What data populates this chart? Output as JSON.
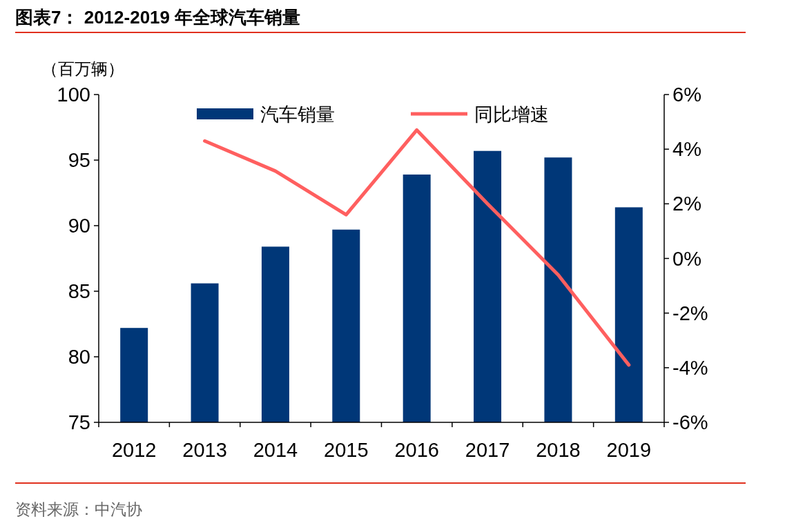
{
  "chart_data": {
    "type": "bar",
    "title": "图表7： 2012-2019 年全球汽车销量",
    "ylabel": "（百万辆）",
    "categories": [
      "2012",
      "2013",
      "2014",
      "2015",
      "2016",
      "2017",
      "2018",
      "2019"
    ],
    "series": [
      {
        "name": "汽车销量",
        "type": "bar",
        "color": "#003778",
        "values": [
          82.2,
          85.6,
          88.4,
          89.7,
          93.9,
          95.7,
          95.2,
          91.4
        ]
      },
      {
        "name": "同比增速",
        "type": "line",
        "axis": "y2",
        "color": "#ff5f5f",
        "values": [
          null,
          4.3,
          3.2,
          1.6,
          4.7,
          2.0,
          -0.6,
          -3.9
        ]
      }
    ],
    "ylim": [
      75,
      100
    ],
    "yticks": [
      75,
      80,
      85,
      90,
      95,
      100
    ],
    "y2lim": [
      -6,
      6
    ],
    "y2ticks": [
      {
        "value": -6,
        "label": "-6%"
      },
      {
        "value": -4,
        "label": "-4%"
      },
      {
        "value": -2,
        "label": "-2%"
      },
      {
        "value": 0,
        "label": "0%"
      },
      {
        "value": 2,
        "label": "2%"
      },
      {
        "value": 4,
        "label": "4%"
      },
      {
        "value": 6,
        "label": "6%"
      }
    ],
    "legend": "top",
    "annotations": [
      "资料来源：中汽协"
    ]
  }
}
